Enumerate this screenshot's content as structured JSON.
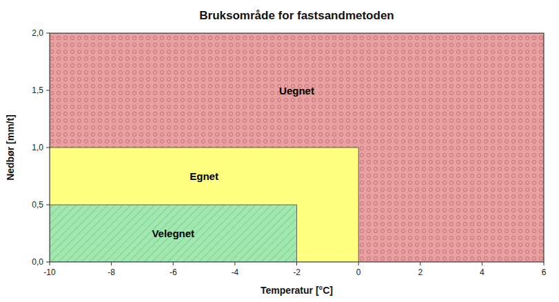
{
  "chart_data": {
    "type": "region",
    "title": "Bruksområde for fastsandmetoden",
    "x_label": "Temperatur [°C]",
    "y_label": "Nedbør [mm/t]",
    "xlim": [
      -10,
      6
    ],
    "ylim": [
      0,
      2
    ],
    "xticks": [
      -10,
      -8,
      -6,
      -4,
      -2,
      0,
      2,
      4,
      6
    ],
    "yticks": [
      {
        "value": 0.0,
        "label": "0,0"
      },
      {
        "value": 0.5,
        "label": "0,5"
      },
      {
        "value": 1.0,
        "label": "1,0"
      },
      {
        "value": 1.5,
        "label": "1,5"
      },
      {
        "value": 2.0,
        "label": "2,0"
      }
    ],
    "regions": [
      {
        "name": "Uegnet",
        "color": "#e8a0a0",
        "x": [
          -10,
          6
        ],
        "y": [
          0,
          2
        ]
      },
      {
        "name": "Egnet",
        "color": "#ffff80",
        "x": [
          -10,
          0
        ],
        "y": [
          0,
          1.0
        ]
      },
      {
        "name": "Velegnet",
        "color": "#a0e8b0",
        "x": [
          -10,
          -2
        ],
        "y": [
          0,
          0.5
        ]
      }
    ]
  }
}
